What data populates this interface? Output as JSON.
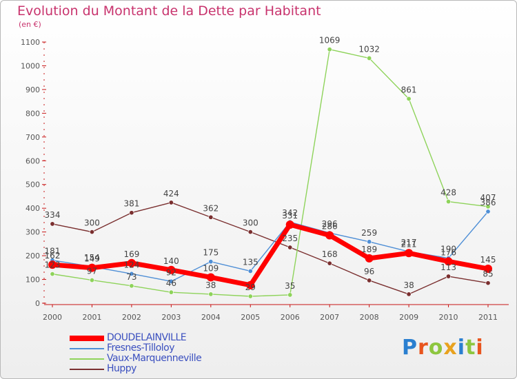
{
  "chart_data": {
    "type": "line",
    "title": "Evolution du Montant de la Dette par Habitant",
    "subtitle": "(en €)",
    "x": [
      "2000",
      "2001",
      "2002",
      "2003",
      "2004",
      "2005",
      "2006",
      "2007",
      "2008",
      "2009",
      "2010",
      "2011"
    ],
    "ylim": [
      0,
      1100
    ],
    "yticks": [
      0,
      100,
      200,
      300,
      400,
      500,
      600,
      700,
      800,
      900,
      1000,
      1100
    ],
    "grid": false,
    "legend_position": "bottom-left",
    "series": [
      {
        "name": "DOUDELAINVILLE",
        "color": "#ff0000",
        "values": [
          162,
          149,
          169,
          140,
          109,
          76,
          331,
          286,
          189,
          211,
          176,
          145
        ],
        "labels": [
          "162",
          "149",
          "169",
          "140",
          "109",
          "",
          "331",
          "286",
          "189",
          "211",
          "176",
          "145"
        ]
      },
      {
        "name": "Fresnes-Tilloloy",
        "color": "#4f8fd6",
        "values": [
          181,
          154,
          124,
          92,
          175,
          135,
          342,
          296,
          259,
          217,
          190,
          386
        ],
        "labels": [
          "181",
          "154",
          "124",
          "92",
          "175",
          "135",
          "342",
          "296",
          "259",
          "217",
          "190",
          "386"
        ]
      },
      {
        "name": "Vaux-Marquenneville",
        "color": "#8ed35a",
        "values": [
          123,
          97,
          73,
          46,
          38,
          29,
          35,
          1069,
          1032,
          861,
          428,
          407
        ],
        "labels": [
          "123",
          "97",
          "73",
          "46",
          "38",
          "29",
          "35",
          "1069",
          "1032",
          "861",
          "428",
          "407"
        ]
      },
      {
        "name": "Huppy",
        "color": "#7a2f2f",
        "values": [
          334,
          300,
          381,
          424,
          362,
          300,
          235,
          168,
          96,
          38,
          113,
          85
        ],
        "labels": [
          "334",
          "300",
          "381",
          "424",
          "362",
          "300",
          "235",
          "168",
          "96",
          "38",
          "113",
          "85"
        ]
      }
    ]
  },
  "brand": {
    "text": "Proxiti",
    "letters": [
      "P",
      "r",
      "o",
      "x",
      "i",
      "t",
      "i"
    ],
    "colors": [
      "#2a7fd0",
      "#e8551e",
      "#8dc63f",
      "#e8a21e",
      "#2a7fd0",
      "#8dc63f",
      "#e8551e"
    ]
  }
}
